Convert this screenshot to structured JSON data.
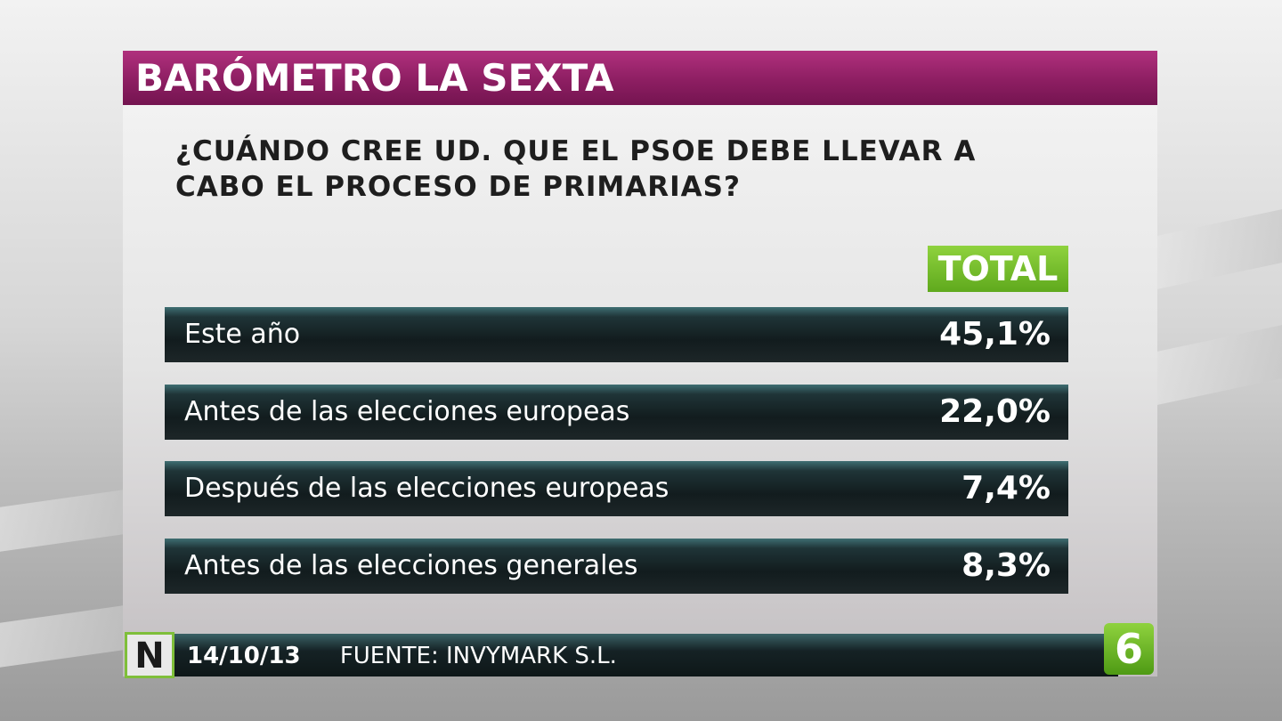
{
  "header": {
    "title": "BARÓMETRO LA SEXTA"
  },
  "question": {
    "lines": [
      "¿CUÁNDO CREE UD. QUE EL PSOE DEBE LLEVAR A",
      "CABO EL PROCESO DE PRIMARIAS?"
    ]
  },
  "table": {
    "column_header": "TOTAL",
    "rows": [
      [
        "Este año",
        "45,1%"
      ],
      [
        "Antes de las elecciones europeas",
        "22,0%"
      ],
      [
        "Después de las elecciones europeas",
        "7,4%"
      ],
      [
        "Antes de las elecciones generales",
        "8,3%"
      ]
    ]
  },
  "footer": {
    "badge": "N",
    "date": "14/10/13",
    "source": "FUENTE: INVYMARK S.L.",
    "logo": "6"
  }
}
